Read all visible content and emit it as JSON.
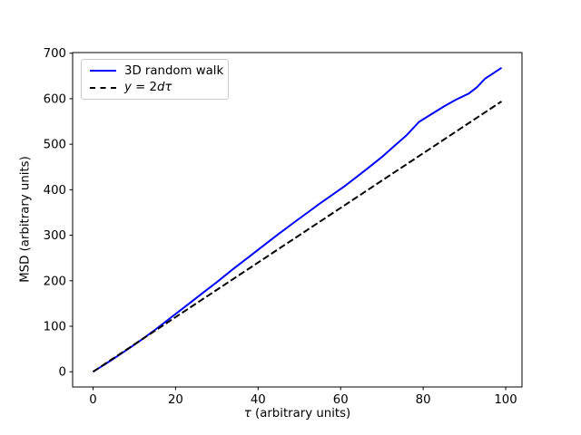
{
  "figure": {
    "background": "#ffffff"
  },
  "chart_data": {
    "type": "line",
    "title": "",
    "xlabel": "τ (arbitrary units)",
    "xlabel_parts": {
      "math": "τ",
      "rest": " (arbitrary units)"
    },
    "ylabel": "MSD (arbitrary units)",
    "xlim": [
      -4.95,
      103.95
    ],
    "ylim": [
      -33.4,
      701.4
    ],
    "xticks": [
      0,
      20,
      40,
      60,
      80,
      100
    ],
    "yticks": [
      0,
      100,
      200,
      300,
      400,
      500,
      600,
      700
    ],
    "grid": false,
    "legend": {
      "position": "upper left",
      "edge_color": "#cccccc"
    },
    "series": [
      {
        "name": "3D random walk",
        "color": "#0000ff",
        "style": "solid",
        "points": [
          [
            0,
            0
          ],
          [
            3,
            17
          ],
          [
            6,
            35
          ],
          [
            9,
            53
          ],
          [
            12,
            72
          ],
          [
            15,
            92
          ],
          [
            18,
            113
          ],
          [
            21,
            134
          ],
          [
            24,
            155
          ],
          [
            27,
            176
          ],
          [
            30,
            197
          ],
          [
            34,
            226
          ],
          [
            38,
            254
          ],
          [
            41,
            275
          ],
          [
            45,
            303
          ],
          [
            49,
            330
          ],
          [
            52,
            350
          ],
          [
            55,
            370
          ],
          [
            58,
            389
          ],
          [
            61,
            408
          ],
          [
            64,
            429
          ],
          [
            67,
            450
          ],
          [
            70,
            472
          ],
          [
            73,
            496
          ],
          [
            76,
            520
          ],
          [
            79,
            549
          ],
          [
            82,
            566
          ],
          [
            85,
            583
          ],
          [
            88,
            598
          ],
          [
            91,
            611
          ],
          [
            93,
            625
          ],
          [
            95,
            644
          ],
          [
            97,
            656
          ],
          [
            99,
            668
          ]
        ]
      },
      {
        "name": "y = 2dτ",
        "name_parts": [
          "y",
          " = 2",
          "dτ"
        ],
        "color": "#000000",
        "style": "dashed",
        "points": [
          [
            0,
            0
          ],
          [
            99,
            594
          ]
        ]
      }
    ]
  }
}
